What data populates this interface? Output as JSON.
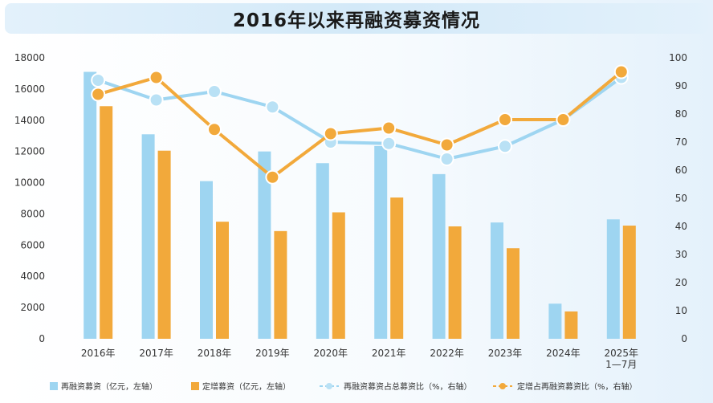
{
  "title": "2016年以来再融资募资情况",
  "chart_data": {
    "type": "bar",
    "categories": [
      {
        "line1": "2016年",
        "line2": ""
      },
      {
        "line1": "2017年",
        "line2": ""
      },
      {
        "line1": "2018年",
        "line2": ""
      },
      {
        "line1": "2019年",
        "line2": ""
      },
      {
        "line1": "2020年",
        "line2": ""
      },
      {
        "line1": "2021年",
        "line2": ""
      },
      {
        "line1": "2022年",
        "line2": ""
      },
      {
        "line1": "2023年",
        "line2": ""
      },
      {
        "line1": "2024年",
        "line2": ""
      },
      {
        "line1": "2025年",
        "line2": "1—7月"
      }
    ],
    "left_axis": {
      "min": 0,
      "max": 18000,
      "step": 2000,
      "ticks": [
        "0",
        "2000",
        "4000",
        "6000",
        "8000",
        "10000",
        "12000",
        "14000",
        "16000",
        "18000"
      ]
    },
    "right_axis": {
      "min": 0,
      "max": 100,
      "step": 10,
      "ticks": [
        "0",
        "10",
        "20",
        "30",
        "40",
        "50",
        "60",
        "70",
        "80",
        "90",
        "100"
      ]
    },
    "bar_series": [
      {
        "name": "再融资募资（亿元，左轴）",
        "color": "#9ed5f1",
        "values": [
          17100,
          13100,
          10100,
          12000,
          11250,
          12350,
          10550,
          7450,
          2250,
          7650
        ]
      },
      {
        "name": "定增募资（亿元，左轴）",
        "color": "#f2a93b",
        "values": [
          14900,
          12050,
          7500,
          6900,
          8100,
          9050,
          7200,
          5800,
          1750,
          7250
        ]
      }
    ],
    "line_series": [
      {
        "name": "再融资募资占总募资比（%，右轴）",
        "color": "#9ed5f1",
        "marker_color": "#b9e1f5",
        "values": [
          92,
          85,
          88,
          82.5,
          70,
          69.5,
          64,
          68.5,
          78,
          93
        ]
      },
      {
        "name": "定增占再融资募资比（%，右轴）",
        "color": "#f2a93b",
        "marker_color": "#f2a93b",
        "values": [
          87,
          93,
          74.5,
          57.5,
          73,
          75,
          69,
          78,
          78,
          95
        ]
      }
    ],
    "grid": false,
    "legend_position": "bottom"
  }
}
